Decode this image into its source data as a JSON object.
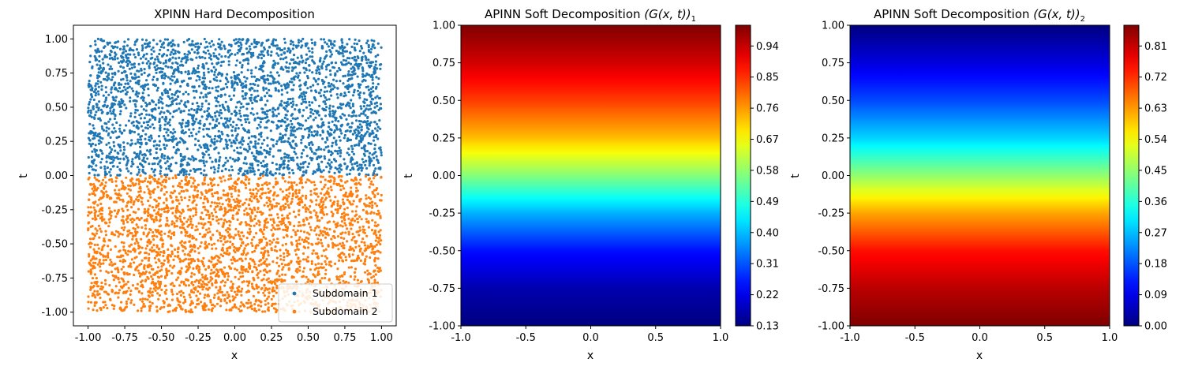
{
  "chart_data": [
    {
      "type": "scatter",
      "title": "XPINN Hard Decomposition",
      "xlabel": "x",
      "ylabel": "t",
      "xlim": [
        -1.1,
        1.1
      ],
      "ylim": [
        -1.1,
        1.1
      ],
      "xticks": [
        "-1.00",
        "-0.75",
        "-0.50",
        "-0.25",
        "0.00",
        "0.25",
        "0.50",
        "0.75",
        "1.00"
      ],
      "yticks": [
        "1.00",
        "0.75",
        "0.50",
        "0.25",
        "0.00",
        "-0.25",
        "-0.50",
        "-0.75",
        "-1.00"
      ],
      "legend_position": "lower-right",
      "series": [
        {
          "name": "Subdomain 1",
          "color": "#1f77b4",
          "x_range": [
            -1.0,
            1.0
          ],
          "t_range": [
            0.0,
            1.0
          ],
          "n_points": 5000
        },
        {
          "name": "Subdomain 2",
          "color": "#ff7f0e",
          "x_range": [
            -1.0,
            1.0
          ],
          "t_range": [
            -1.0,
            0.0
          ],
          "n_points": 5000
        }
      ]
    },
    {
      "type": "heatmap",
      "title_main": "APINN Soft Decomposition ",
      "title_math": "(G(x, t))",
      "title_sub": "1",
      "xlabel": "x",
      "ylabel": "t",
      "xlim": [
        -1.0,
        1.0
      ],
      "ylim": [
        -1.0,
        1.0
      ],
      "xticks": [
        "-1.0",
        "-0.5",
        "0.0",
        "0.5",
        "1.0"
      ],
      "yticks": [
        "1.00",
        "0.75",
        "0.50",
        "0.25",
        "0.00",
        "-0.25",
        "-0.50",
        "-0.75",
        "-1.00"
      ],
      "colormap": "jet",
      "t_values": [
        -1.0,
        -0.75,
        -0.5,
        -0.25,
        0.0,
        0.25,
        0.5,
        0.75,
        1.0
      ],
      "field_values": [
        0.13,
        0.17,
        0.25,
        0.39,
        0.57,
        0.73,
        0.84,
        0.93,
        1.0
      ],
      "colorbar_range": [
        0.13,
        1.0
      ],
      "colorbar_ticks": [
        "0.94",
        "0.85",
        "0.76",
        "0.67",
        "0.58",
        "0.49",
        "0.40",
        "0.31",
        "0.22",
        "0.13"
      ]
    },
    {
      "type": "heatmap",
      "title_main": "APINN Soft Decomposition ",
      "title_math": "(G(x, t))",
      "title_sub": "2",
      "xlabel": "x",
      "ylabel": "t",
      "xlim": [
        -1.0,
        1.0
      ],
      "ylim": [
        -1.0,
        1.0
      ],
      "xticks": [
        "-1.0",
        "-0.5",
        "0.0",
        "0.5",
        "1.0"
      ],
      "yticks": [
        "1.00",
        "0.75",
        "0.50",
        "0.25",
        "0.00",
        "-0.25",
        "-0.50",
        "-0.75",
        "-1.00"
      ],
      "colormap": "jet",
      "t_values": [
        -1.0,
        -0.75,
        -0.5,
        -0.25,
        0.0,
        0.25,
        0.5,
        0.75,
        1.0
      ],
      "field_values": [
        0.87,
        0.82,
        0.75,
        0.62,
        0.45,
        0.29,
        0.17,
        0.08,
        0.0
      ],
      "colorbar_range": [
        0.0,
        0.87
      ],
      "colorbar_ticks": [
        "0.81",
        "0.72",
        "0.63",
        "0.54",
        "0.45",
        "0.36",
        "0.27",
        "0.18",
        "0.09",
        "0.00"
      ]
    }
  ]
}
